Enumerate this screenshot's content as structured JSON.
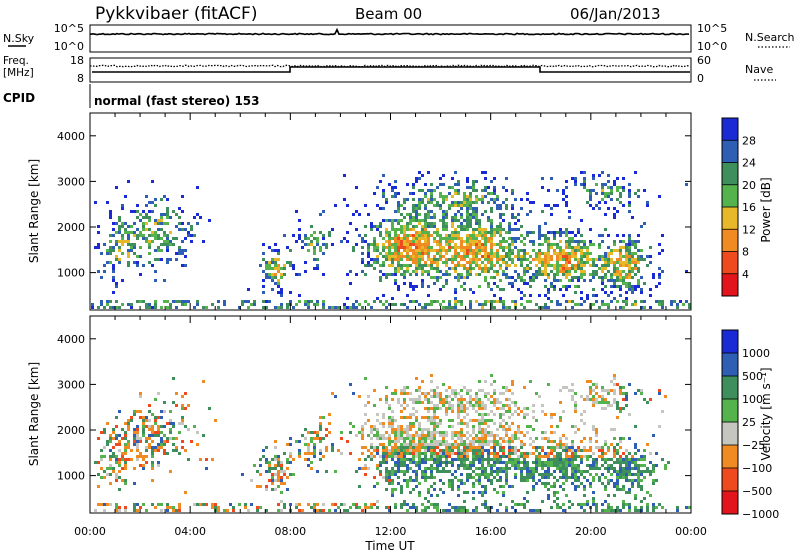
{
  "header": {
    "radar": "Pykkvibaer (fitACF)",
    "beam": "Beam 00",
    "date": "06/Jan/2013"
  },
  "noise_panel": {
    "left_label": "N.Sky",
    "left_ticks": [
      "10^5",
      "10^0"
    ],
    "right_label": "N.Search",
    "right_ticks": [
      "10^5",
      "10^0"
    ]
  },
  "freq_panel": {
    "left_label_1": "Freq.",
    "left_label_2": "[MHz]",
    "left_ticks": [
      "18",
      "8"
    ],
    "right_label": "Nave",
    "right_ticks": [
      "60",
      "0"
    ]
  },
  "cpid_panel": {
    "label": "CPID",
    "mode": "normal (fast stereo) 153"
  },
  "colors": {
    "power_scale": [
      "#1a2bd6",
      "#2f5fb4",
      "#3f8f5c",
      "#55b34d",
      "#e7b82a",
      "#f08a22",
      "#ef4a1d",
      "#e2141c"
    ],
    "velocity_scale": [
      "#1a2bd6",
      "#2f5fb4",
      "#3f8f5c",
      "#55b34d",
      "#c6c6c0",
      "#f08a22",
      "#ef4a1d",
      "#e2141c"
    ]
  },
  "chart_data": [
    {
      "type": "heatmap",
      "name": "power",
      "ylabel": "Slant Range [km]",
      "yticks": [
        "4000",
        "3000",
        "2000",
        "1000"
      ],
      "ylim": [
        180,
        4500
      ],
      "xlim": [
        0,
        24
      ],
      "colorbar_label": "Power [dB]",
      "colorbar_ticks": [
        "28",
        "24",
        "20",
        "16",
        "12",
        "8",
        "4"
      ]
    },
    {
      "type": "heatmap",
      "name": "velocity",
      "ylabel": "Slant Range [km]",
      "yticks": [
        "4000",
        "3000",
        "2000",
        "1000"
      ],
      "ylim": [
        180,
        4500
      ],
      "xlim": [
        0,
        24
      ],
      "xlabel": "Time UT",
      "xticks": [
        "00:00",
        "04:00",
        "08:00",
        "12:00",
        "16:00",
        "20:00",
        "00:00"
      ],
      "colorbar_label": "Velocity [m s⁻¹]",
      "colorbar_ticks": [
        "1000",
        "500",
        "100",
        "25",
        "−25",
        "−100",
        "−500",
        "−1000"
      ]
    }
  ]
}
